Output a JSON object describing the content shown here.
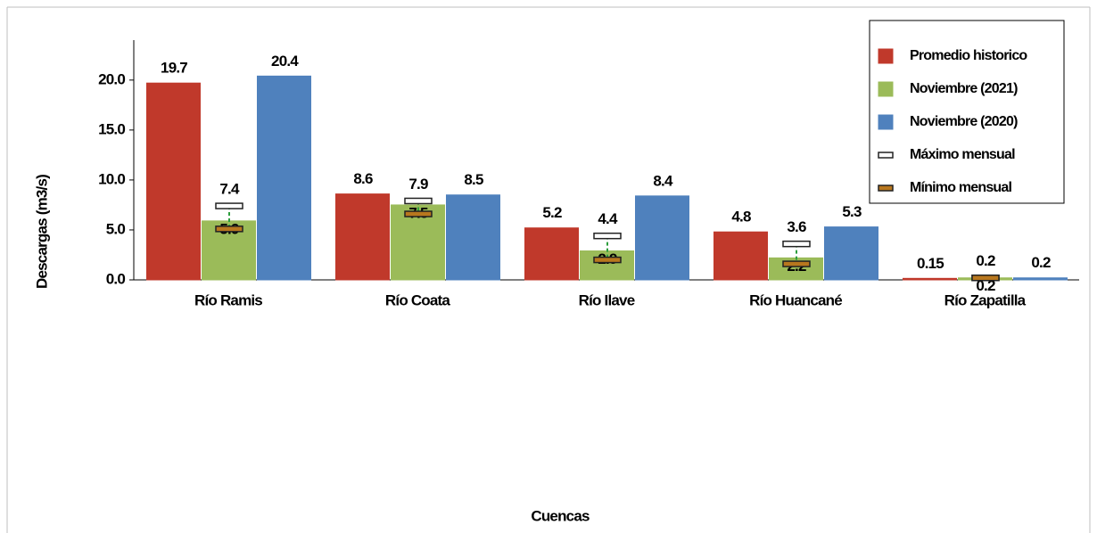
{
  "chart_data": {
    "type": "bar",
    "x_label": "Cuencas",
    "y_label": "Descargas (m3/s)",
    "categories": [
      "Río Ramis",
      "Río Coata",
      "Río Ilave",
      "Río Huancané",
      "Río Zapatilla"
    ],
    "ylim": [
      0,
      24
    ],
    "yticks": [
      {
        "value": 0,
        "label": "0.0"
      },
      {
        "value": 5,
        "label": "5.0"
      },
      {
        "value": 10,
        "label": "10.0"
      },
      {
        "value": 15,
        "label": "15.0"
      },
      {
        "value": 20,
        "label": "20.0"
      }
    ],
    "legend": "top-right",
    "series": [
      {
        "name": "Promedio historico",
        "style": "bar",
        "color": "#c0392b",
        "values": [
          19.7,
          8.6,
          5.2,
          4.8,
          0.15
        ]
      },
      {
        "name": "Noviembre (2021)",
        "style": "bar",
        "color": "#9bbb59",
        "values": [
          5.9,
          7.5,
          2.9,
          2.2,
          0.2
        ]
      },
      {
        "name": "Noviembre (2020)",
        "style": "bar",
        "color": "#4f81bd",
        "values": [
          20.4,
          8.5,
          8.4,
          5.3,
          0.2
        ]
      },
      {
        "name": "Máximo mensual",
        "style": "range-max",
        "color": "#ffffff",
        "values": [
          7.4,
          7.9,
          4.4,
          3.6,
          0.2
        ]
      },
      {
        "name": "Mínimo mensual",
        "style": "range-min",
        "color": "#b8771e",
        "values": [
          5.1,
          6.6,
          2.0,
          1.6,
          0.2
        ]
      }
    ]
  }
}
